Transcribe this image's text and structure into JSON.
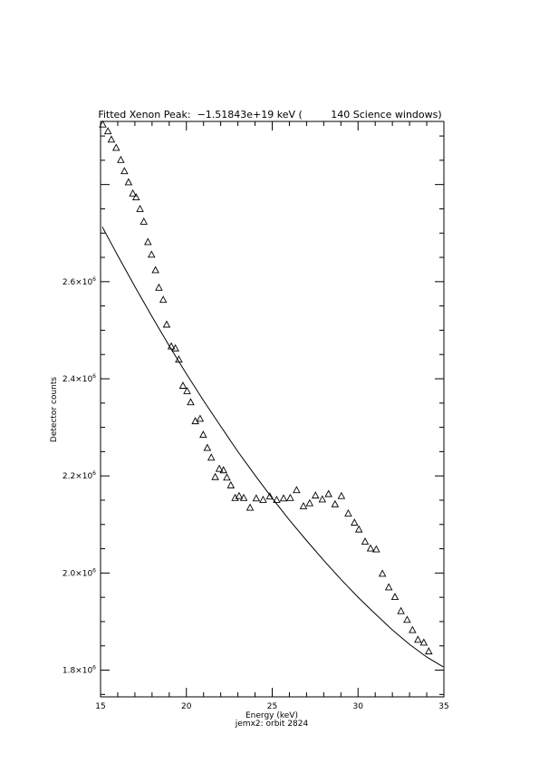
{
  "chart_data": {
    "type": "scatter",
    "title": "Fitted Xenon Peak:  −1.51843e+19 keV (         140 Science windows)",
    "xlabel": "Energy (keV)",
    "xlabel2": "jemx2: orbit 2824",
    "ylabel": "Detector counts",
    "xlim": [
      15,
      35
    ],
    "ylim": [
      1745000.0,
      2930000.0
    ],
    "x_ticks": [
      {
        "value": 15,
        "label": "15"
      },
      {
        "value": 20,
        "label": "20"
      },
      {
        "value": 25,
        "label": "25"
      },
      {
        "value": 30,
        "label": "30"
      },
      {
        "value": 35,
        "label": "35"
      }
    ],
    "y_ticks": [
      {
        "value": 1800000.0,
        "mant": "1.8×10",
        "exp": "6"
      },
      {
        "value": 2000000.0,
        "mant": "2.0×10",
        "exp": "6"
      },
      {
        "value": 2200000.0,
        "mant": "2.2×10",
        "exp": "6"
      },
      {
        "value": 2400000.0,
        "mant": "2.4×10",
        "exp": "6"
      },
      {
        "value": 2600000.0,
        "mant": "2.6×10",
        "exp": "6"
      }
    ],
    "series": [
      {
        "kind": "points",
        "marker": "triangle",
        "x": [
          15.13,
          15.43,
          15.63,
          15.91,
          16.18,
          16.39,
          16.63,
          16.88,
          17.07,
          17.3,
          17.52,
          17.76,
          17.97,
          18.2,
          18.4,
          18.65,
          18.85,
          19.12,
          19.36,
          19.56,
          19.8,
          20.04,
          20.25,
          20.52,
          20.8,
          20.98,
          21.22,
          21.45,
          21.68,
          21.92,
          22.16,
          22.36,
          22.59,
          22.84,
          23.07,
          23.34,
          23.71,
          24.07,
          24.47,
          24.86,
          25.26,
          25.66,
          26.05,
          26.42,
          26.82,
          27.18,
          27.52,
          27.92,
          28.28,
          28.66,
          29.03,
          29.43,
          29.79,
          30.05,
          30.41,
          30.73,
          31.06,
          31.42,
          31.79,
          32.15,
          32.5,
          32.86,
          33.17,
          33.49,
          33.83,
          34.12
        ],
        "y": [
          2924000.0,
          2910000.0,
          2893000.0,
          2876000.0,
          2851000.0,
          2828000.0,
          2805000.0,
          2782000.0,
          2774000.0,
          2750000.0,
          2724000.0,
          2682000.0,
          2656000.0,
          2624000.0,
          2588000.0,
          2563000.0,
          2512000.0,
          2467000.0,
          2463000.0,
          2440000.0,
          2386000.0,
          2375000.0,
          2352000.0,
          2313000.0,
          2318000.0,
          2285000.0,
          2258000.0,
          2238000.0,
          2198000.0,
          2215000.0,
          2212000.0,
          2197000.0,
          2181000.0,
          2155000.0,
          2159000.0,
          2155000.0,
          2135000.0,
          2154000.0,
          2151000.0,
          2158000.0,
          2151000.0,
          2154000.0,
          2155000.0,
          2171000.0,
          2138000.0,
          2144000.0,
          2160000.0,
          2152000.0,
          2163000.0,
          2142000.0,
          2159000.0,
          2123000.0,
          2104000.0,
          2090000.0,
          2065000.0,
          2051000.0,
          2049000.0,
          1999000.0,
          1971000.0,
          1951000.0,
          1922000.0,
          1904000.0,
          1883000.0,
          1863000.0,
          1857000.0,
          1839000.0
        ]
      },
      {
        "kind": "line",
        "x": [
          15.1,
          16,
          17,
          18,
          19,
          20,
          21,
          22,
          23,
          24,
          25,
          26,
          27,
          28,
          29,
          30,
          31,
          32,
          33,
          34,
          34.95
        ],
        "y": [
          2713000.0,
          2654000.0,
          2590000.0,
          2528000.0,
          2468000.0,
          2410000.0,
          2355000.0,
          2302000.0,
          2250000.0,
          2201000.0,
          2154000.0,
          2109000.0,
          2067000.0,
          2026000.0,
          1987000.0,
          1950000.0,
          1916000.0,
          1883000.0,
          1853000.0,
          1827000.0,
          1807000.0
        ]
      }
    ]
  }
}
